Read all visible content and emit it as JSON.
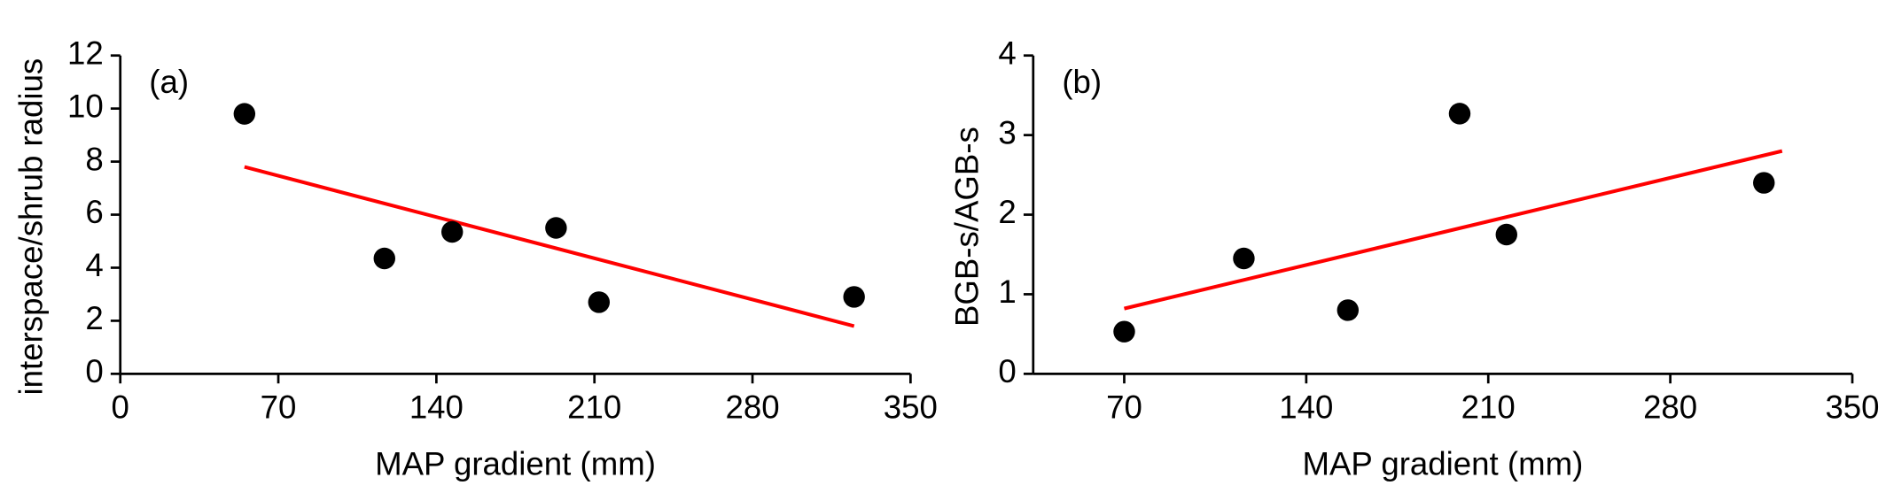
{
  "chart_data": [
    {
      "type": "scatter",
      "panel_label": "(a)",
      "x_label": "MAP gradient (mm)",
      "y_label": "interspace/shrub radius",
      "x": [
        55,
        117,
        147,
        193,
        212,
        325
      ],
      "values": [
        9.8,
        4.35,
        5.35,
        5.5,
        2.7,
        2.9
      ],
      "color": "#000000",
      "fit": {
        "x": [
          55,
          325
        ],
        "values": [
          7.8,
          1.8
        ],
        "color": "#ff0000"
      },
      "xlim": [
        0,
        350
      ],
      "xticks": [
        0,
        70,
        140,
        210,
        280,
        350
      ],
      "ylim": [
        0,
        12
      ],
      "yticks": [
        0,
        2,
        4,
        6,
        8,
        10,
        12
      ]
    },
    {
      "type": "scatter",
      "panel_label": "(b)",
      "x_label": "MAP gradient (mm)",
      "y_label": "BGB-s/AGB-s",
      "x": [
        70,
        116,
        156,
        199,
        217,
        316
      ],
      "values": [
        0.53,
        1.45,
        0.8,
        3.27,
        1.75,
        2.4
      ],
      "color": "#000000",
      "fit": {
        "x": [
          70,
          323
        ],
        "values": [
          0.82,
          2.8
        ],
        "color": "#ff0000"
      },
      "xlim": [
        35,
        350
      ],
      "xticks": [
        70,
        140,
        210,
        280,
        350
      ],
      "ylim": [
        0,
        4
      ],
      "yticks": [
        0,
        1,
        2,
        3,
        4
      ]
    }
  ]
}
